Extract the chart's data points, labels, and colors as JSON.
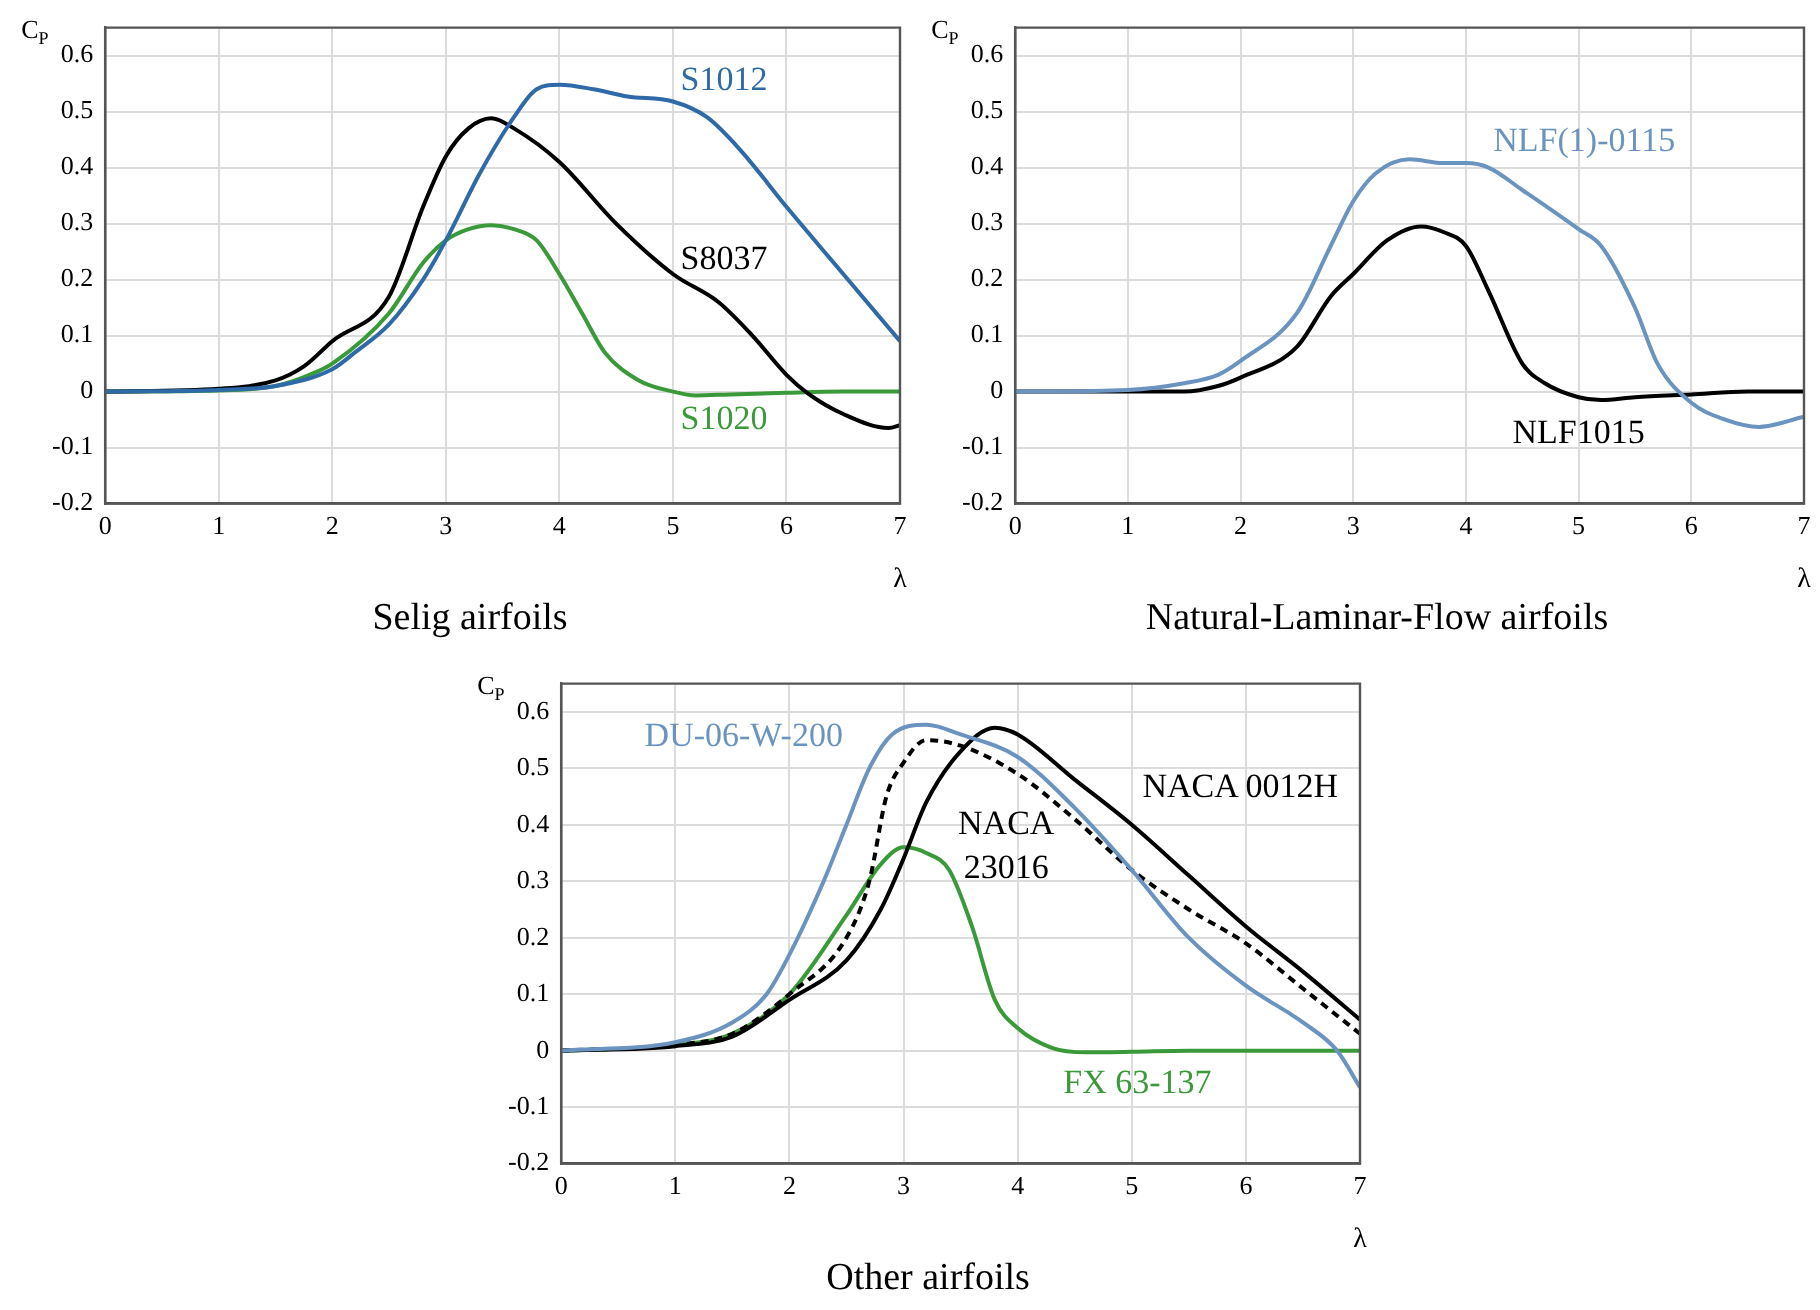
{
  "chart_data": [
    {
      "type": "line",
      "title": "Selig airfoils",
      "xlabel": "λ",
      "ylabel": "C$_{P}$",
      "xlim": [
        0,
        7
      ],
      "xticks": [
        0,
        1,
        2,
        3,
        4,
        5,
        6,
        7
      ],
      "ylim": [
        -0.2,
        0.65
      ],
      "yticks": [
        -0.2,
        -0.1,
        0,
        0.1,
        0.2,
        0.3,
        0.4,
        0.5,
        0.6
      ],
      "grid": true,
      "legend": false,
      "marker": "none",
      "series": [
        {
          "name": "S1012",
          "color": "#2f6aa8",
          "x": [
            0,
            1,
            1.5,
            2,
            2.2,
            2.5,
            2.8,
            3,
            3.3,
            3.6,
            3.8,
            4,
            4.3,
            4.6,
            5,
            5.3,
            5.6,
            6,
            6.5,
            7
          ],
          "values": [
            0,
            0.003,
            0.01,
            0.04,
            0.07,
            0.12,
            0.2,
            0.27,
            0.39,
            0.49,
            0.54,
            0.548,
            0.54,
            0.527,
            0.518,
            0.49,
            0.43,
            0.33,
            0.21,
            0.09
          ]
        },
        {
          "name": "S8037",
          "color": "#000000",
          "x": [
            0,
            1,
            1.5,
            1.75,
            2,
            2.5,
            2.8,
            3,
            3.2,
            3.4,
            3.6,
            4,
            4.5,
            5,
            5.4,
            5.7,
            6,
            6.2,
            6.5,
            6.9,
            7
          ],
          "values": [
            0,
            0.005,
            0.02,
            0.045,
            0.09,
            0.17,
            0.33,
            0.42,
            0.47,
            0.488,
            0.47,
            0.41,
            0.3,
            0.21,
            0.16,
            0.1,
            0.03,
            -0.005,
            -0.04,
            -0.065,
            -0.06
          ]
        },
        {
          "name": "S1020",
          "color": "#3a9a3a",
          "x": [
            0,
            1,
            1.5,
            1.8,
            2,
            2.5,
            2.8,
            3,
            3.2,
            3.4,
            3.6,
            3.8,
            4,
            4.2,
            4.4,
            4.7,
            5,
            5.2,
            5.5,
            6,
            6.5,
            7
          ],
          "values": [
            0,
            0.002,
            0.01,
            0.03,
            0.05,
            0.14,
            0.23,
            0.27,
            0.29,
            0.297,
            0.29,
            0.27,
            0.21,
            0.14,
            0.07,
            0.02,
            0,
            -0.007,
            -0.005,
            -0.002,
            0,
            0
          ]
        }
      ]
    },
    {
      "type": "line",
      "title": "Natural-Laminar-Flow airfoils",
      "xlabel": "λ",
      "ylabel": "C$_{P}$",
      "xlim": [
        0,
        7
      ],
      "xticks": [
        0,
        1,
        2,
        3,
        4,
        5,
        6,
        7
      ],
      "ylim": [
        -0.2,
        0.65
      ],
      "yticks": [
        -0.2,
        -0.1,
        0,
        0.1,
        0.2,
        0.3,
        0.4,
        0.5,
        0.6
      ],
      "grid": true,
      "legend": false,
      "marker": "none",
      "series": [
        {
          "name": "NLF(1)-0115",
          "color": "#6a93c0",
          "x": [
            0,
            1,
            1.5,
            1.8,
            2,
            2.5,
            2.8,
            3,
            3.2,
            3.5,
            3.8,
            4,
            4.2,
            4.5,
            5,
            5.2,
            5.5,
            5.7,
            6,
            6.3,
            6.6,
            7
          ],
          "values": [
            0,
            0.003,
            0.015,
            0.03,
            0.055,
            0.14,
            0.26,
            0.34,
            0.39,
            0.415,
            0.408,
            0.408,
            0.4,
            0.36,
            0.29,
            0.26,
            0.15,
            0.05,
            -0.02,
            -0.05,
            -0.063,
            -0.045
          ]
        },
        {
          "name": "NLF1015",
          "color": "#000000",
          "x": [
            0,
            1.5,
            1.8,
            2,
            2.5,
            2.8,
            3,
            3.3,
            3.6,
            3.8,
            4,
            4.2,
            4.5,
            4.7,
            5,
            5.2,
            5.5,
            6,
            6.5,
            7
          ],
          "values": [
            0,
            0,
            0.01,
            0.025,
            0.08,
            0.17,
            0.21,
            0.27,
            0.295,
            0.285,
            0.26,
            0.18,
            0.05,
            0.015,
            -0.01,
            -0.015,
            -0.01,
            -0.005,
            0,
            0
          ]
        }
      ]
    },
    {
      "type": "line",
      "title": "Other airfoils",
      "xlabel": "λ",
      "ylabel": "C$_{P}$",
      "xlim": [
        0,
        7
      ],
      "xticks": [
        0,
        1,
        2,
        3,
        4,
        5,
        6,
        7
      ],
      "ylim": [
        -0.2,
        0.65
      ],
      "yticks": [
        -0.2,
        -0.1,
        0,
        0.1,
        0.2,
        0.3,
        0.4,
        0.5,
        0.6
      ],
      "grid": true,
      "legend": false,
      "marker": "none",
      "series": [
        {
          "name": "DU-06-W-200",
          "color": "#6a93c0",
          "x": [
            0,
            1,
            1.5,
            1.8,
            2,
            2.3,
            2.5,
            2.7,
            2.9,
            3.2,
            3.5,
            4,
            4.5,
            5,
            5.5,
            6,
            6.5,
            6.8,
            7
          ],
          "values": [
            0,
            0.015,
            0.05,
            0.1,
            0.17,
            0.3,
            0.4,
            0.5,
            0.56,
            0.577,
            0.56,
            0.52,
            0.43,
            0.32,
            0.2,
            0.115,
            0.05,
            0,
            -0.065
          ]
        },
        {
          "name": "NACA 0012H",
          "color": "#000000",
          "x": [
            0,
            1,
            1.5,
            2,
            2.5,
            2.8,
            3,
            3.2,
            3.5,
            3.8,
            4,
            4.5,
            5,
            5.5,
            6,
            6.5,
            7
          ],
          "values": [
            0,
            0.008,
            0.025,
            0.09,
            0.16,
            0.25,
            0.34,
            0.44,
            0.53,
            0.572,
            0.56,
            0.48,
            0.4,
            0.31,
            0.22,
            0.14,
            0.055
          ]
        },
        {
          "name": "NACA 23016",
          "color": "#000000",
          "line_style": "dashed",
          "x": [
            0,
            1,
            1.5,
            2,
            2.5,
            2.7,
            2.85,
            3,
            3.2,
            3.5,
            4,
            4.5,
            5,
            5.5,
            6,
            6.5,
            7
          ],
          "values": [
            0,
            0.01,
            0.03,
            0.1,
            0.2,
            0.3,
            0.45,
            0.51,
            0.55,
            0.54,
            0.49,
            0.41,
            0.32,
            0.25,
            0.19,
            0.11,
            0.03
          ]
        },
        {
          "name": "FX 63-137",
          "color": "#3a9a3a",
          "x": [
            0,
            1,
            1.5,
            2,
            2.5,
            2.8,
            3,
            3.2,
            3.4,
            3.6,
            3.8,
            4,
            4.3,
            4.6,
            5,
            5.5,
            6,
            7
          ],
          "values": [
            0,
            0.01,
            0.03,
            0.1,
            0.24,
            0.33,
            0.36,
            0.35,
            0.32,
            0.22,
            0.09,
            0.04,
            0.005,
            -0.003,
            -0.002,
            0,
            0,
            0
          ]
        }
      ]
    }
  ]
}
